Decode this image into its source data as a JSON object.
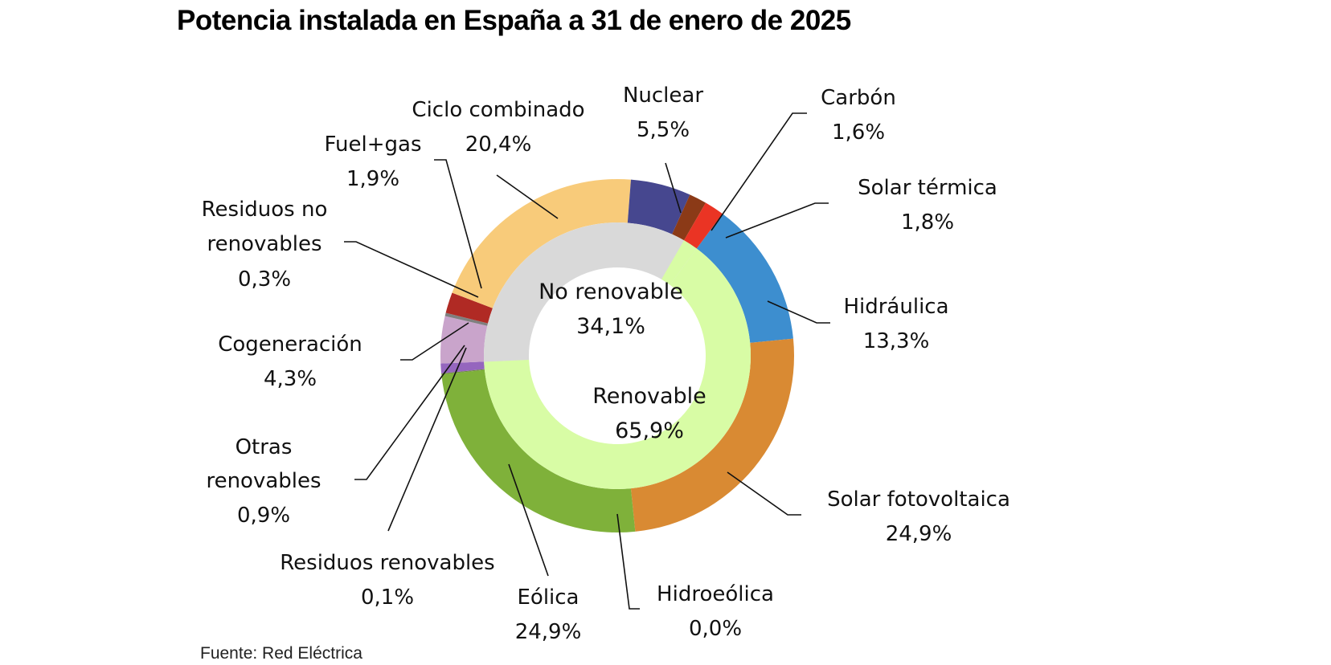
{
  "chart_data": {
    "type": "pie",
    "variant": "nested-donut",
    "title": "Potencia instalada en España a 31 de enero de 2025",
    "source": "Fuente: Red Eléctrica",
    "unit": "%",
    "inner_ring": [
      {
        "name": "No renovable",
        "value": 34.1,
        "label": "34,1%",
        "color": "#D9D9D9"
      },
      {
        "name": "Renovable",
        "value": 65.9,
        "label": "65,9%",
        "color": "#D8FCA5"
      }
    ],
    "outer_ring": [
      {
        "name": "Hidráulica",
        "value": 13.3,
        "label": "13,3%",
        "color": "#3D8ECF",
        "group": "Renovable"
      },
      {
        "name": "Solar fotovoltaica",
        "value": 24.9,
        "label": "24,9%",
        "color": "#D98A33",
        "group": "Renovable"
      },
      {
        "name": "Hidroeólica",
        "value": 0.0,
        "label": "0,0%",
        "color": "#5B9BD5",
        "group": "Renovable"
      },
      {
        "name": "Eólica",
        "value": 24.9,
        "label": "24,9%",
        "color": "#7FB13A",
        "group": "Renovable"
      },
      {
        "name": "Residuos renovables",
        "value": 0.1,
        "label": "0,1%",
        "color": "#6E8F3A",
        "group": "Renovable"
      },
      {
        "name": "Otras renovables",
        "value": 0.9,
        "label": "0,9%",
        "color": "#9566BE",
        "group": "Renovable"
      },
      {
        "name": "Cogeneración",
        "value": 4.3,
        "label": "4,3%",
        "color": "#C9A4CB",
        "group": "No renovable"
      },
      {
        "name": "Residuos no renovables",
        "value": 0.3,
        "label": "0,3%",
        "color": "#7F7F7F",
        "group": "No renovable"
      },
      {
        "name": "Fuel+gas",
        "value": 1.9,
        "label": "1,9%",
        "color": "#B02A24",
        "group": "No renovable"
      },
      {
        "name": "Ciclo combinado",
        "value": 20.4,
        "label": "20,4%",
        "color": "#F8CB7A",
        "group": "No renovable"
      },
      {
        "name": "Nuclear",
        "value": 5.5,
        "label": "5,5%",
        "color": "#46478F",
        "group": "No renovable"
      },
      {
        "name": "Carbón",
        "value": 1.6,
        "label": "1,6%",
        "color": "#8B3A17",
        "group": "No renovable"
      },
      {
        "name": "Solar térmica",
        "value": 1.8,
        "label": "1,8%",
        "color": "#EA3424",
        "group": "Renovable"
      }
    ],
    "label_lines": {
      "Residuos no renovables": [
        "Residuos no",
        "renovables"
      ],
      "Otras renovables": [
        "Otras",
        "renovables"
      ]
    }
  }
}
